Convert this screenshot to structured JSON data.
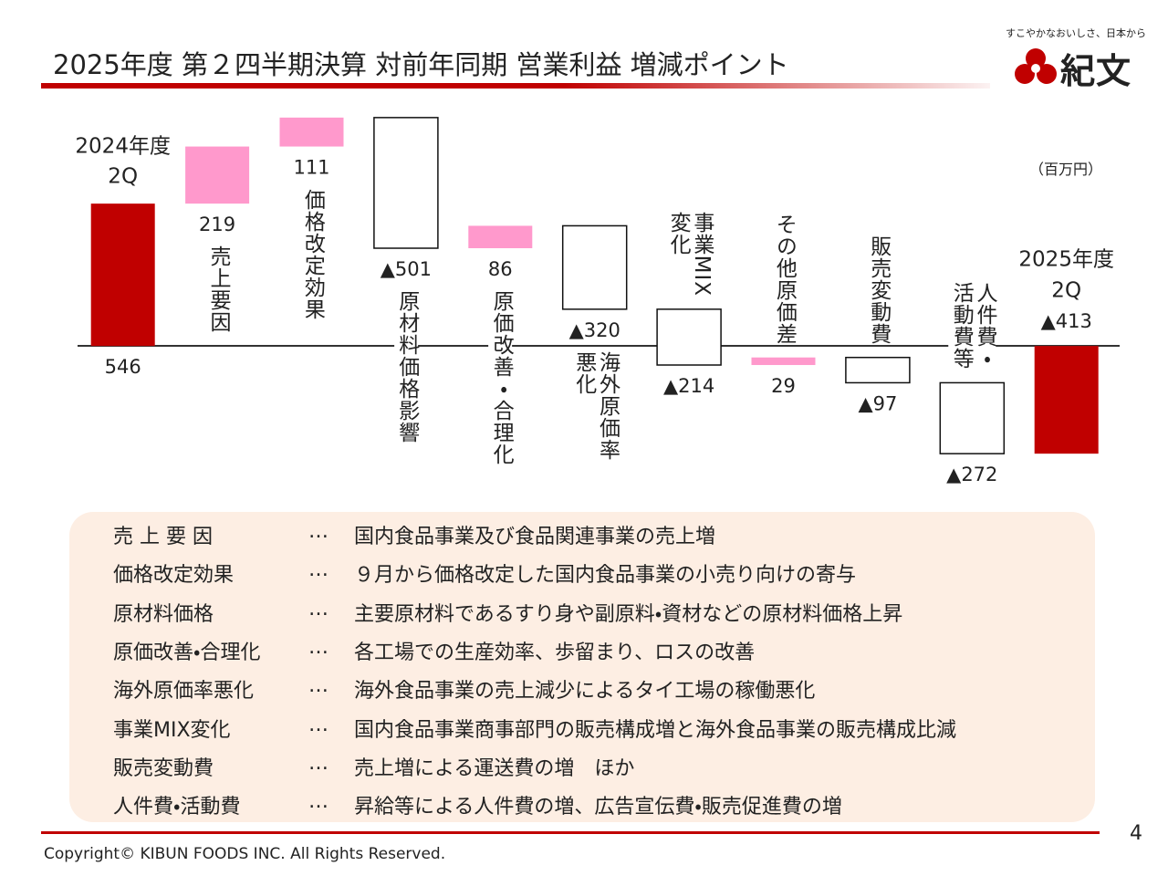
{
  "header": {
    "title": "2025年度 第２四半期決算 対前年同期 営業利益 増減ポイント",
    "logo_tagline": "すこやかなおいしさ、日本から",
    "logo_text": "紀文"
  },
  "chart_data": {
    "type": "waterfall",
    "unit": "（百万円）",
    "categories": [
      "2024年度\n2Q",
      "売上要因",
      "価格改定効果",
      "原材料価格影響",
      "原価改善・合理化",
      "海外原価率\n悪化",
      "事業MIX\n変化",
      "その他原価差",
      "販売変動費",
      "人件費・\n活動費等",
      "2025年度\n2Q"
    ],
    "values": [
      546,
      219,
      111,
      -501,
      86,
      -320,
      -214,
      29,
      -97,
      -272,
      -413
    ],
    "value_labels": [
      "546",
      "219",
      "111",
      "▲501",
      "86",
      "▲320",
      "▲214",
      "29",
      "▲97",
      "▲272",
      "▲413"
    ],
    "colors": {
      "total": "#c00000",
      "increase": "#ff99cc",
      "decrease": "#ffffff"
    },
    "ylim": [
      -600,
      900
    ]
  },
  "notes_table": {
    "rows": [
      [
        "売 上 要 因",
        "…",
        "国内食品事業及び食品関連事業の売上増"
      ],
      [
        "価格改定効果",
        "…",
        "９月から価格改定した国内食品事業の小売り向けの寄与"
      ],
      [
        "原材料価格",
        "…",
        "主要原材料であるすり身や副原料・資材などの原材料価格上昇"
      ],
      [
        "原価改善・合理化",
        "…",
        "各工場での生産効率、歩留まり、ロスの改善"
      ],
      [
        "海外原価率悪化",
        "…",
        "海外食品事業の売上減少によるタイ工場の稼働悪化"
      ],
      [
        "事業MIX変化",
        "…",
        "国内食品事業商事部門の販売構成増と海外食品事業の販売構成比減"
      ],
      [
        "販売変動費",
        "…",
        "売上増による運送費の増　ほか"
      ],
      [
        "人件費・活動費",
        "…",
        "昇給等による人件費の増、広告宣伝費・販売促進費の増"
      ]
    ]
  },
  "footer": {
    "page_number": "4",
    "copyright": "Copyright©  KIBUN FOODS INC. All Rights Reserved."
  }
}
